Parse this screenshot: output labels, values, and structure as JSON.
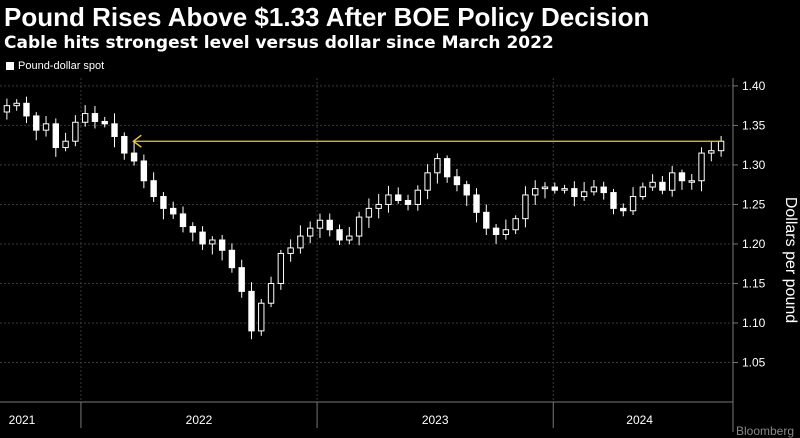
{
  "header": {
    "title": "Pound Rises Above $1.33 After BOE Policy Decision",
    "subtitle": "Cable hits strongest level versus dollar since March 2022"
  },
  "credit": "Bloomberg",
  "chart_data": {
    "type": "candlestick",
    "series": [
      {
        "name": "Pound-dollar spot"
      }
    ],
    "ylabel": "Dollars per pound",
    "ylim": [
      1.0,
      1.41
    ],
    "yticks": [
      1.05,
      1.1,
      1.15,
      1.2,
      1.25,
      1.3,
      1.35,
      1.4
    ],
    "ytick_labels": [
      "1.05",
      "1.10",
      "1.15",
      "1.20",
      "1.25",
      "1.30",
      "1.35",
      "1.40"
    ],
    "x_range": [
      "2021-09-01",
      "2024-09-24"
    ],
    "x_labels": [
      "2021",
      "2022",
      "2023",
      "2024"
    ],
    "grid": true,
    "legend_position": "top-left",
    "colors": {
      "candles": "#ffffff",
      "annotation": "#e8c83a",
      "grid": "#3a3a3a"
    },
    "annotation": {
      "type": "horizontal-arrow",
      "y": 1.33,
      "x_from": "2022-03-23",
      "x_to": "2024-09-19"
    },
    "x": [
      "2021-09",
      "2021-09",
      "2021-10",
      "2021-10",
      "2021-11",
      "2021-11",
      "2021-12",
      "2021-12",
      "2022-01",
      "2022-01",
      "2022-02",
      "2022-02",
      "2022-03",
      "2022-03",
      "2022-04",
      "2022-04",
      "2022-05",
      "2022-05",
      "2022-06",
      "2022-06",
      "2022-07",
      "2022-07",
      "2022-08",
      "2022-08",
      "2022-09",
      "2022-09",
      "2022-10",
      "2022-10",
      "2022-11",
      "2022-11",
      "2022-12",
      "2022-12",
      "2023-01",
      "2023-01",
      "2023-02",
      "2023-02",
      "2023-03",
      "2023-03",
      "2023-04",
      "2023-04",
      "2023-05",
      "2023-05",
      "2023-06",
      "2023-06",
      "2023-07",
      "2023-07",
      "2023-08",
      "2023-08",
      "2023-09",
      "2023-09",
      "2023-10",
      "2023-10",
      "2023-11",
      "2023-11",
      "2023-12",
      "2023-12",
      "2024-01",
      "2024-01",
      "2024-02",
      "2024-02",
      "2024-03",
      "2024-03",
      "2024-04",
      "2024-04",
      "2024-05",
      "2024-05",
      "2024-06",
      "2024-06",
      "2024-07",
      "2024-07",
      "2024-08",
      "2024-08",
      "2024-09",
      "2024-09"
    ],
    "close": [
      1.375,
      1.378,
      1.362,
      1.344,
      1.352,
      1.322,
      1.33,
      1.354,
      1.365,
      1.355,
      1.352,
      1.336,
      1.315,
      1.305,
      1.28,
      1.26,
      1.245,
      1.238,
      1.222,
      1.215,
      1.2,
      1.205,
      1.192,
      1.17,
      1.14,
      1.09,
      1.125,
      1.15,
      1.188,
      1.195,
      1.21,
      1.22,
      1.23,
      1.218,
      1.205,
      1.21,
      1.234,
      1.245,
      1.25,
      1.262,
      1.255,
      1.25,
      1.268,
      1.29,
      1.308,
      1.285,
      1.275,
      1.262,
      1.24,
      1.22,
      1.212,
      1.218,
      1.232,
      1.262,
      1.27,
      1.272,
      1.268,
      1.27,
      1.26,
      1.266,
      1.272,
      1.265,
      1.245,
      1.242,
      1.26,
      1.272,
      1.278,
      1.268,
      1.29,
      1.28,
      1.28,
      1.315,
      1.318,
      1.33
    ]
  }
}
